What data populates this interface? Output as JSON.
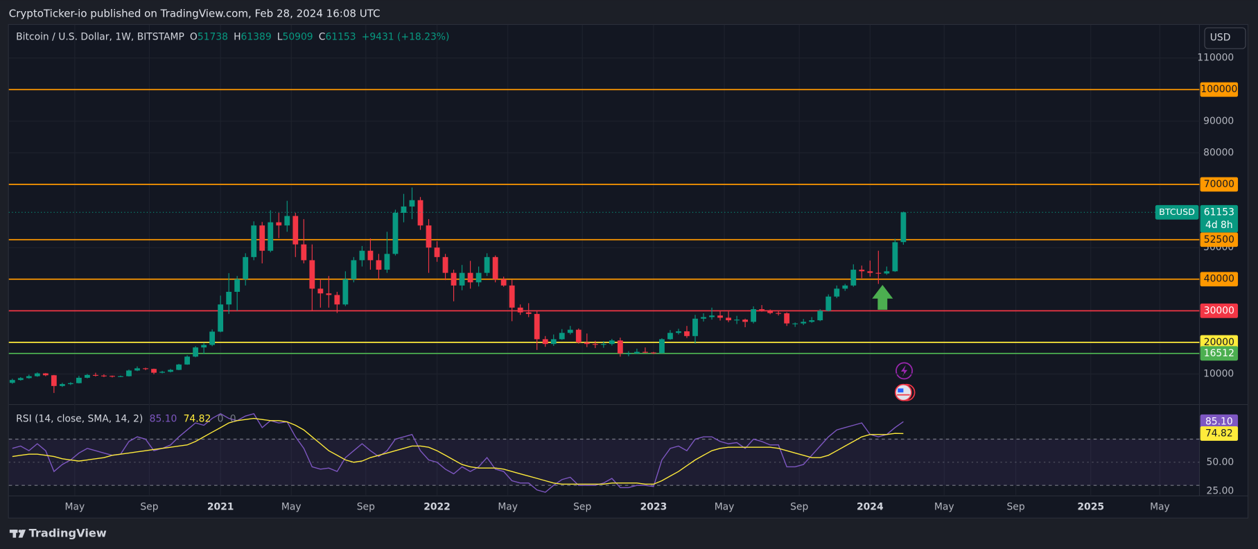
{
  "publisher": "CryptoTicker-io published on TradingView.com, Feb 28, 2024 16:08 UTC",
  "footer": "TradingView",
  "currency": "USD",
  "chart_data": [
    {
      "type": "candlestick",
      "title": "Bitcoin / U.S. Dollar, 1W, BITSTAMP",
      "ohlc_labels": [
        "O",
        "H",
        "L",
        "C"
      ],
      "change": "+9431 (+18.23%)",
      "up_color": "#089981",
      "down_color": "#f23645",
      "x": [
        2,
        4,
        6,
        8,
        10,
        12,
        14,
        16,
        18,
        20,
        22,
        24,
        26,
        28,
        30,
        32,
        34,
        36,
        38,
        40,
        42,
        44,
        46,
        48,
        50,
        52,
        54,
        56,
        58,
        60,
        62,
        64,
        66,
        68,
        70,
        72,
        74,
        76,
        78,
        80,
        82,
        84,
        86,
        88,
        90,
        92,
        94,
        96,
        98,
        100,
        102,
        104,
        106,
        108,
        110,
        112,
        114,
        116,
        118,
        120,
        122,
        124,
        126,
        128,
        130,
        132,
        134,
        136,
        138,
        140,
        142,
        144,
        146,
        148,
        150,
        152,
        154,
        156,
        158,
        160,
        162,
        164,
        166,
        168,
        170,
        172,
        174,
        176,
        178,
        180,
        182,
        184,
        186,
        188,
        190,
        192,
        194,
        196,
        198,
        200,
        202,
        204,
        206,
        208,
        210,
        212,
        214,
        216
      ],
      "candles": [
        [
          7200,
          8500,
          6900,
          8100
        ],
        [
          8100,
          9000,
          7900,
          8700
        ],
        [
          8700,
          9800,
          8500,
          9300
        ],
        [
          9300,
          10500,
          9100,
          10200
        ],
        [
          10200,
          10300,
          9300,
          9600
        ],
        [
          9600,
          9700,
          4000,
          6200
        ],
        [
          6200,
          7200,
          5900,
          6800
        ],
        [
          6800,
          7400,
          6500,
          7100
        ],
        [
          7100,
          9400,
          7000,
          8800
        ],
        [
          8800,
          10000,
          8600,
          9700
        ],
        [
          9700,
          10400,
          9200,
          9500
        ],
        [
          9500,
          9900,
          9000,
          9400
        ],
        [
          9400,
          9500,
          8900,
          9200
        ],
        [
          9200,
          9500,
          9000,
          9300
        ],
        [
          9300,
          11400,
          9200,
          11100
        ],
        [
          11100,
          12400,
          10900,
          11800
        ],
        [
          11800,
          12000,
          11200,
          11600
        ],
        [
          11600,
          11700,
          9900,
          10400
        ],
        [
          10400,
          11000,
          10200,
          10700
        ],
        [
          10700,
          11600,
          10500,
          11300
        ],
        [
          11300,
          13200,
          11200,
          13000
        ],
        [
          13000,
          15900,
          12900,
          15500
        ],
        [
          15500,
          18800,
          15300,
          18400
        ],
        [
          18400,
          19900,
          16300,
          19200
        ],
        [
          19200,
          24100,
          18800,
          23400
        ],
        [
          23400,
          34800,
          23200,
          32000
        ],
        [
          32000,
          41900,
          29000,
          36000
        ],
        [
          36000,
          41000,
          30000,
          40000
        ],
        [
          40000,
          48200,
          38000,
          47000
        ],
        [
          47000,
          58300,
          46000,
          57000
        ],
        [
          57000,
          58100,
          45000,
          49000
        ],
        [
          49000,
          61800,
          48500,
          58000
        ],
        [
          58000,
          61000,
          53000,
          57000
        ],
        [
          57000,
          64800,
          55000,
          60000
        ],
        [
          60000,
          61000,
          47000,
          51000
        ],
        [
          51000,
          59000,
          45000,
          46000
        ],
        [
          46000,
          51000,
          30000,
          37000
        ],
        [
          37000,
          40000,
          31000,
          35500
        ],
        [
          35500,
          41000,
          31000,
          35000
        ],
        [
          35000,
          36000,
          29300,
          32000
        ],
        [
          32000,
          42500,
          31500,
          40000
        ],
        [
          40000,
          47000,
          39000,
          46000
        ],
        [
          46000,
          50500,
          44000,
          49000
        ],
        [
          49000,
          52900,
          43000,
          46000
        ],
        [
          46000,
          48000,
          40000,
          43000
        ],
        [
          43000,
          55000,
          42000,
          48000
        ],
        [
          48000,
          62000,
          47500,
          61000
        ],
        [
          61000,
          67000,
          58000,
          63000
        ],
        [
          63000,
          69000,
          59000,
          65000
        ],
        [
          65000,
          66000,
          55600,
          57000
        ],
        [
          57000,
          59000,
          42000,
          50000
        ],
        [
          50000,
          52000,
          45500,
          47000
        ],
        [
          47000,
          48000,
          39700,
          42000
        ],
        [
          42000,
          43000,
          33000,
          38000
        ],
        [
          38000,
          44500,
          36500,
          42000
        ],
        [
          42000,
          45800,
          37000,
          39000
        ],
        [
          39000,
          44000,
          37700,
          42000
        ],
        [
          42000,
          48200,
          41000,
          47000
        ],
        [
          47000,
          47500,
          39000,
          40000
        ],
        [
          40000,
          40800,
          37600,
          38000
        ],
        [
          38000,
          39800,
          26700,
          31000
        ],
        [
          31000,
          32000,
          28700,
          29500
        ],
        [
          29500,
          32400,
          28000,
          29000
        ],
        [
          29000,
          30000,
          17600,
          21000
        ],
        [
          21000,
          22000,
          18600,
          19500
        ],
        [
          19500,
          22500,
          18900,
          21000
        ],
        [
          21000,
          24200,
          20800,
          23000
        ],
        [
          23000,
          25200,
          22500,
          24000
        ],
        [
          24000,
          24400,
          19600,
          20000
        ],
        [
          20000,
          22800,
          18500,
          19500
        ],
        [
          19500,
          20500,
          18200,
          19300
        ],
        [
          19300,
          20400,
          18300,
          19500
        ],
        [
          19500,
          21100,
          19000,
          20600
        ],
        [
          20600,
          21500,
          15500,
          16500
        ],
        [
          16500,
          17200,
          15600,
          16500
        ],
        [
          16500,
          18000,
          16300,
          17000
        ],
        [
          17000,
          18400,
          16600,
          16800
        ],
        [
          16800,
          17000,
          16300,
          16600
        ],
        [
          16600,
          21300,
          16500,
          21000
        ],
        [
          21000,
          23900,
          20800,
          23000
        ],
        [
          23000,
          24300,
          22500,
          23500
        ],
        [
          23500,
          25200,
          21400,
          22000
        ],
        [
          22000,
          28700,
          19600,
          27500
        ],
        [
          27500,
          29200,
          26600,
          28000
        ],
        [
          28000,
          31000,
          27200,
          28500
        ],
        [
          28500,
          30000,
          26900,
          27800
        ],
        [
          27800,
          29800,
          26400,
          27000
        ],
        [
          27000,
          28400,
          25800,
          27200
        ],
        [
          27200,
          27500,
          24800,
          26500
        ],
        [
          26500,
          31400,
          26000,
          30500
        ],
        [
          30500,
          31800,
          29700,
          30200
        ],
        [
          30200,
          30400,
          28900,
          29300
        ],
        [
          29300,
          30000,
          28500,
          29200
        ],
        [
          29200,
          29500,
          25200,
          26000
        ],
        [
          26000,
          26300,
          24900,
          26000
        ],
        [
          26000,
          27400,
          25500,
          26500
        ],
        [
          26500,
          28000,
          26200,
          27000
        ],
        [
          27000,
          30500,
          26700,
          30000
        ],
        [
          30000,
          35200,
          29800,
          34500
        ],
        [
          34500,
          38000,
          34000,
          37000
        ],
        [
          37000,
          38500,
          36300,
          38000
        ],
        [
          38000,
          44700,
          37600,
          43000
        ],
        [
          43000,
          44300,
          40300,
          42500
        ],
        [
          42500,
          45900,
          40800,
          42000
        ],
        [
          42000,
          49000,
          38500,
          41800
        ],
        [
          41800,
          44000,
          41400,
          42500
        ],
        [
          42500,
          52800,
          42300,
          51700
        ],
        [
          51738,
          61389,
          50909,
          61153
        ]
      ],
      "xlim": [
        1.16,
        287.1
      ],
      "xticks": [
        {
          "value": 17,
          "label": "May"
        },
        {
          "value": 34.9,
          "label": "Sep"
        },
        {
          "value": 52,
          "label": "2021"
        },
        {
          "value": 69,
          "label": "May"
        },
        {
          "value": 86.9,
          "label": "Sep"
        },
        {
          "value": 104,
          "label": "2022"
        },
        {
          "value": 121,
          "label": "May"
        },
        {
          "value": 138.9,
          "label": "Sep"
        },
        {
          "value": 156,
          "label": "2023"
        },
        {
          "value": 173,
          "label": "May"
        },
        {
          "value": 191,
          "label": "Sep"
        },
        {
          "value": 208,
          "label": "2024"
        },
        {
          "value": 225.8,
          "label": "May"
        },
        {
          "value": 243,
          "label": "Sep"
        },
        {
          "value": 261,
          "label": "2025"
        },
        {
          "value": 277.6,
          "label": "May"
        }
      ],
      "ylim": [
        600,
        120700
      ],
      "yticks": [
        10000,
        50000,
        80000,
        90000,
        110000
      ],
      "grid": true,
      "levels": [
        {
          "value": 100000,
          "color": "#ff9800",
          "text_color": "#131722"
        },
        {
          "value": 70000,
          "color": "#ff9800",
          "text_color": "#131722"
        },
        {
          "value": 52500,
          "color": "#ff9800",
          "text_color": "#131722"
        },
        {
          "value": 40000,
          "color": "#ff9800",
          "text_color": "#131722"
        },
        {
          "value": 30000,
          "color": "#f23645",
          "text_color": "#ffffff"
        },
        {
          "value": 20000,
          "color": "#ffeb3b",
          "text_color": "#131722"
        },
        {
          "value": 16512,
          "color": "#4caf50",
          "text_color": "#ffffff"
        }
      ],
      "current": {
        "label": "BTCUSD",
        "countdown": "4d 8h",
        "color": "#089981"
      }
    },
    {
      "type": "line",
      "title": "RSI (14, close, SMA, 14, 2)",
      "extra": [
        "0",
        "0"
      ],
      "series": [
        {
          "name": "RSI",
          "color": "#7e57c2",
          "values": [
            62,
            64,
            60,
            66,
            60,
            42,
            48,
            52,
            58,
            62,
            60,
            58,
            56,
            57,
            68,
            72,
            70,
            60,
            62,
            65,
            72,
            78,
            84,
            82,
            88,
            92,
            88,
            86,
            90,
            92,
            80,
            86,
            84,
            85,
            72,
            62,
            46,
            44,
            45,
            42,
            54,
            60,
            66,
            60,
            55,
            60,
            70,
            72,
            74,
            60,
            52,
            50,
            44,
            40,
            46,
            42,
            46,
            54,
            44,
            42,
            34,
            32,
            32,
            26,
            24,
            30,
            35,
            37,
            30,
            30,
            30,
            32,
            36,
            28,
            28,
            30,
            30,
            29,
            52,
            62,
            64,
            60,
            70,
            72,
            72,
            68,
            66,
            67,
            62,
            70,
            68,
            65,
            65,
            46,
            46,
            48,
            56,
            64,
            72,
            78,
            80,
            82,
            84,
            74,
            72,
            74,
            80,
            85.1
          ]
        },
        {
          "name": "SMA",
          "color": "#ffeb3b",
          "values": [
            55,
            56,
            57,
            57,
            56,
            55,
            53,
            52,
            51,
            52,
            53,
            54,
            56,
            57,
            58,
            59,
            60,
            61,
            62,
            63,
            64,
            65,
            68,
            72,
            76,
            80,
            84,
            86,
            87,
            88,
            87,
            86,
            86,
            85,
            82,
            78,
            72,
            66,
            60,
            56,
            52,
            50,
            51,
            54,
            56,
            58,
            60,
            62,
            64,
            64,
            63,
            60,
            56,
            52,
            48,
            46,
            45,
            45,
            45,
            44,
            42,
            40,
            38,
            36,
            34,
            32,
            31,
            31,
            31,
            31,
            31,
            31,
            32,
            32,
            32,
            32,
            31,
            31,
            34,
            38,
            42,
            47,
            52,
            56,
            60,
            62,
            63,
            63,
            63,
            63,
            63,
            63,
            62,
            60,
            58,
            56,
            54,
            54,
            56,
            60,
            64,
            68,
            72,
            74,
            74,
            74,
            75,
            74.82
          ]
        }
      ],
      "readouts": [
        {
          "value": 85.1,
          "label": "85.10",
          "color": "#7e57c2",
          "text_color": "#ffffff"
        },
        {
          "value": 74.82,
          "label": "74.82",
          "color": "#ffeb3b",
          "text_color": "#131722"
        }
      ],
      "ylim": [
        20.8,
        99.3
      ],
      "yticks": [
        {
          "value": 25,
          "label": "25.00"
        },
        {
          "value": 50,
          "label": "50.00"
        }
      ],
      "band": [
        30,
        70
      ],
      "midline": 50
    }
  ]
}
